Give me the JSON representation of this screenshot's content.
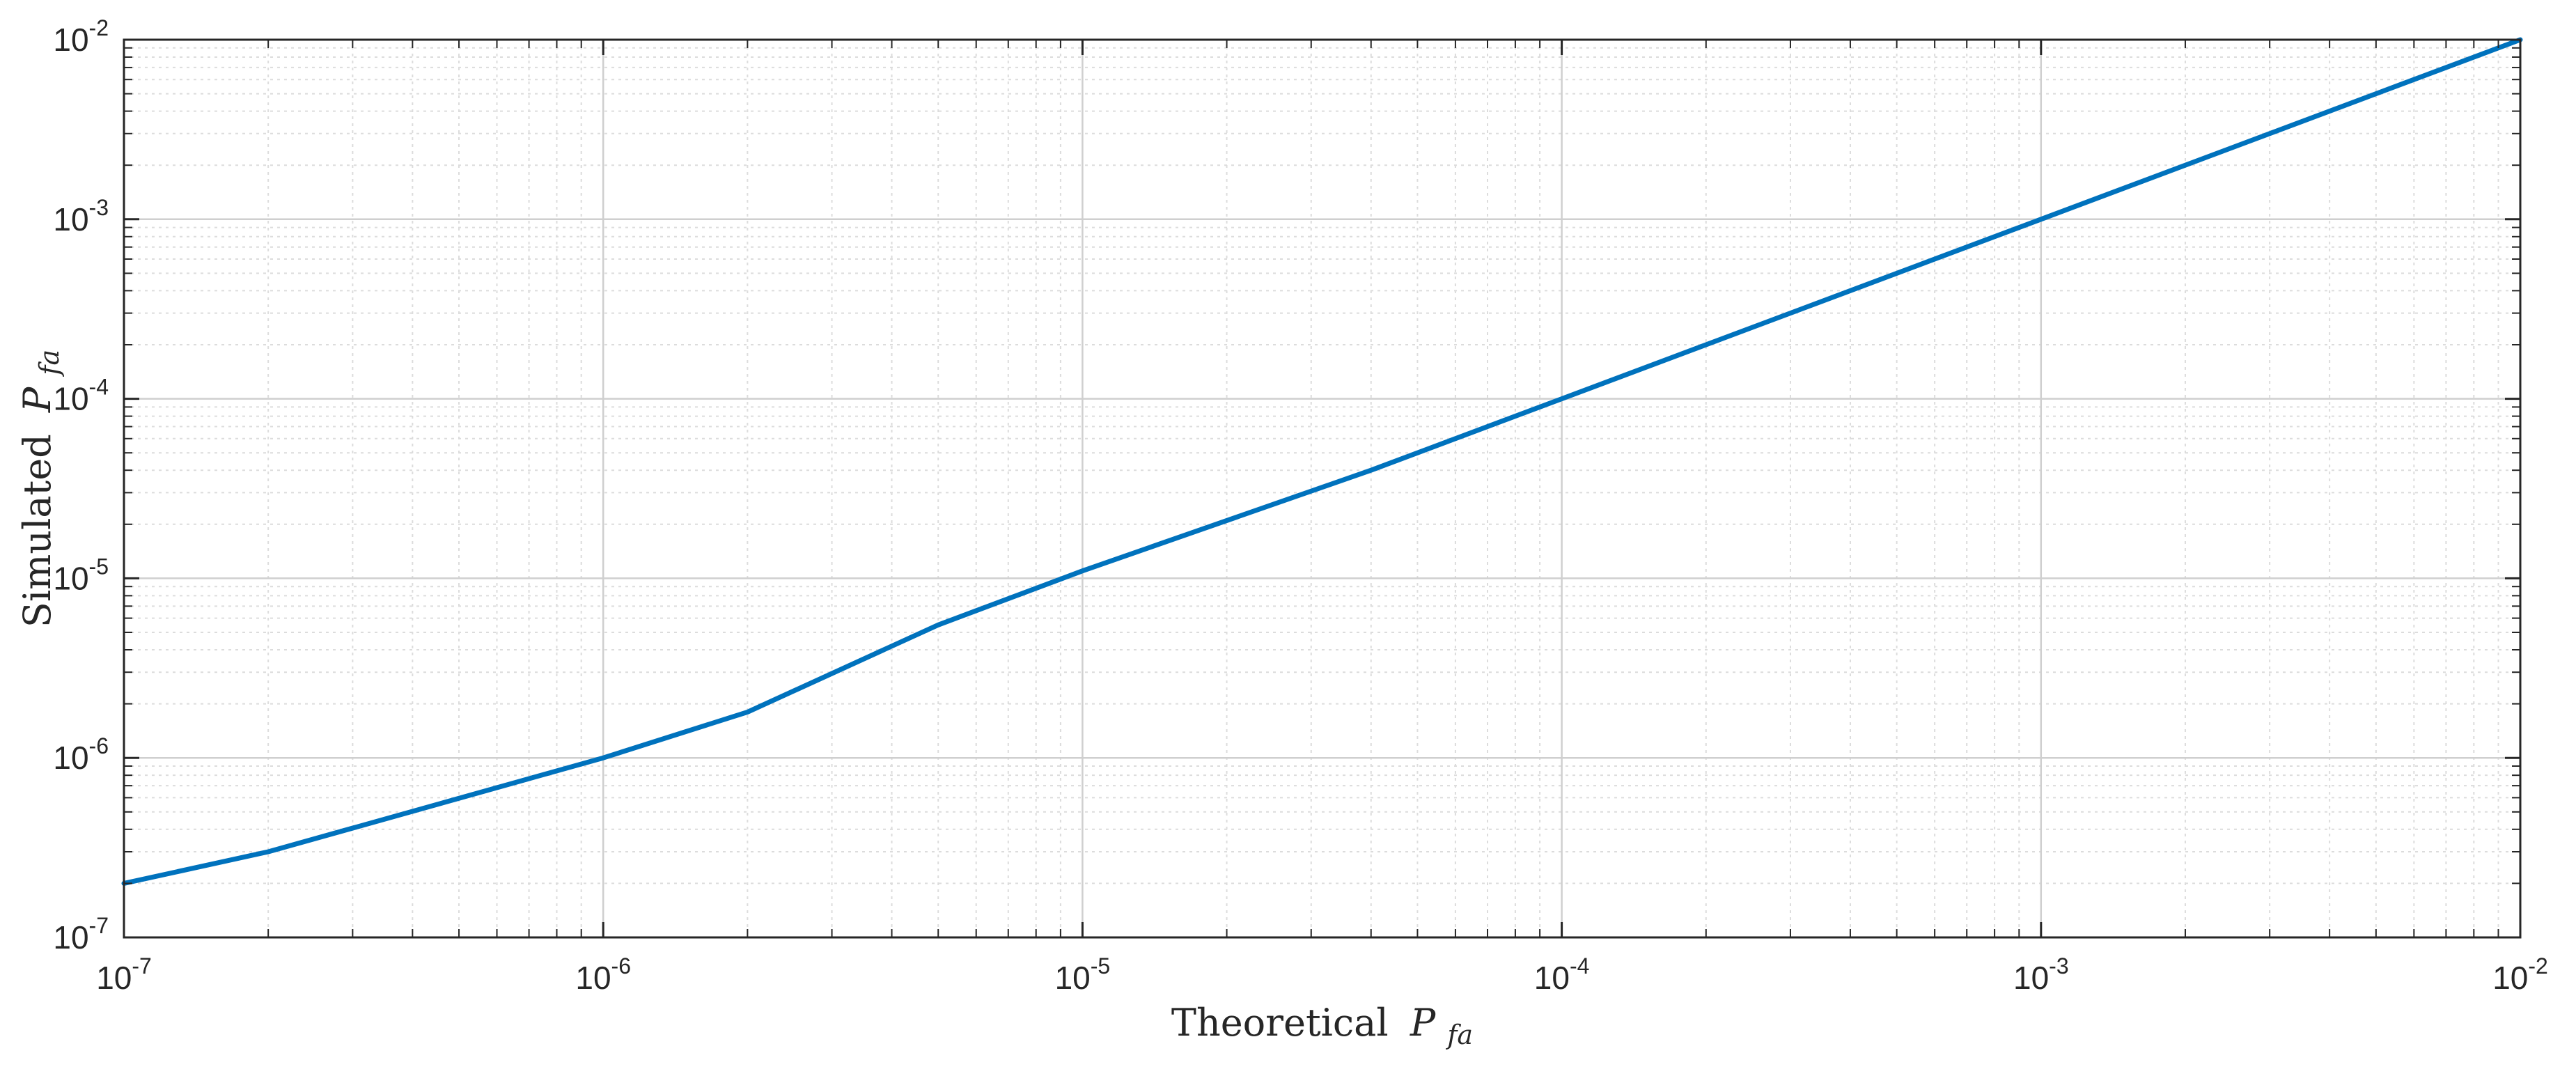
{
  "chart_data": {
    "type": "line",
    "title": "",
    "xlabel": {
      "text": "Theoretical",
      "symbol": "P",
      "subscript": "fa"
    },
    "ylabel": {
      "text": "Simulated",
      "symbol": "P",
      "subscript": "fa"
    },
    "xscale": "log",
    "yscale": "log",
    "xlim": [
      1e-07,
      0.01
    ],
    "ylim": [
      1e-07,
      0.01
    ],
    "grid": true,
    "minor_grid": true,
    "legend": "none",
    "x_ticks": [
      {
        "base": "10",
        "exp": "-7"
      },
      {
        "base": "10",
        "exp": "-6"
      },
      {
        "base": "10",
        "exp": "-5"
      },
      {
        "base": "10",
        "exp": "-4"
      },
      {
        "base": "10",
        "exp": "-3"
      },
      {
        "base": "10",
        "exp": "-2"
      }
    ],
    "y_ticks": [
      {
        "base": "10",
        "exp": "-7"
      },
      {
        "base": "10",
        "exp": "-6"
      },
      {
        "base": "10",
        "exp": "-5"
      },
      {
        "base": "10",
        "exp": "-4"
      },
      {
        "base": "10",
        "exp": "-3"
      },
      {
        "base": "10",
        "exp": "-2"
      }
    ],
    "series": [
      {
        "color": "#0072BD",
        "x": [
          1e-07,
          2e-07,
          1e-06,
          2e-06,
          5e-06,
          1e-05,
          4e-05,
          0.0001,
          0.001,
          0.01
        ],
        "y": [
          2e-07,
          3e-07,
          1e-06,
          1.8e-06,
          5.5e-06,
          1.1e-05,
          4e-05,
          0.0001,
          0.001,
          0.01
        ]
      }
    ]
  }
}
